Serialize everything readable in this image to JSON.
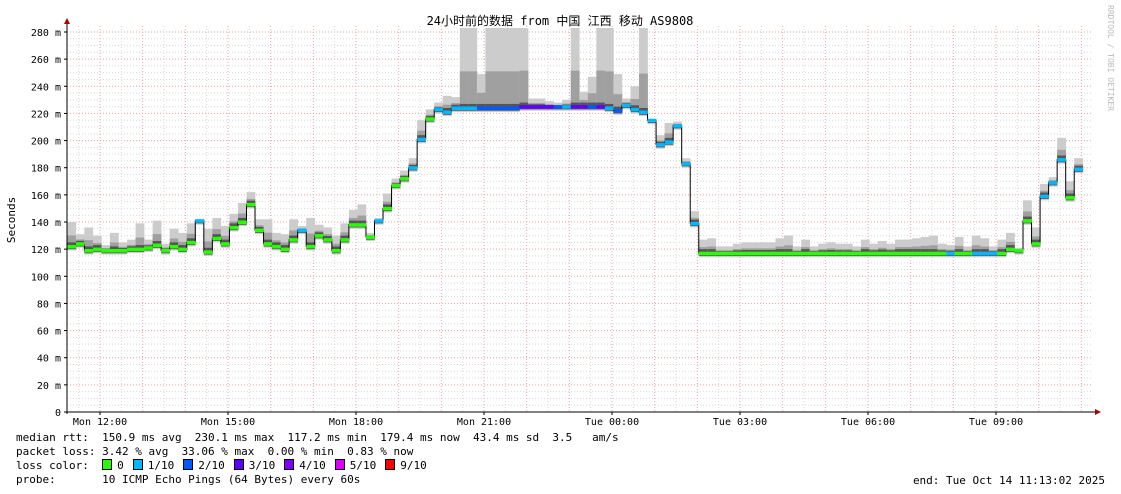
{
  "chart_data": {
    "type": "line",
    "title": "24小时前的数据 from 中国 江西 移动 AS9808",
    "ylabel": "Seconds",
    "watermark": "RRDTOOL / TOBI OETIKER",
    "ylim": [
      0,
      280
    ],
    "yticks": [
      {
        "v": 0,
        "label": "0"
      },
      {
        "v": 20,
        "label": "20 m"
      },
      {
        "v": 40,
        "label": "40 m"
      },
      {
        "v": 60,
        "label": "60 m"
      },
      {
        "v": 80,
        "label": "80 m"
      },
      {
        "v": 100,
        "label": "100 m"
      },
      {
        "v": 120,
        "label": "120 m"
      },
      {
        "v": 140,
        "label": "140 m"
      },
      {
        "v": 160,
        "label": "160 m"
      },
      {
        "v": 180,
        "label": "180 m"
      },
      {
        "v": 200,
        "label": "200 m"
      },
      {
        "v": 220,
        "label": "220 m"
      },
      {
        "v": 240,
        "label": "240 m"
      },
      {
        "v": 260,
        "label": "260 m"
      },
      {
        "v": 280,
        "label": "280 m"
      }
    ],
    "xticks": [
      "Mon 12:00",
      "Mon 15:00",
      "Mon 18:00",
      "Mon 21:00",
      "Tue 00:00",
      "Tue 03:00",
      "Tue 06:00",
      "Tue 09:00"
    ],
    "grid": true,
    "units": "ms",
    "times": [
      "Mon 11:14",
      "Mon 11:26",
      "Mon 11:38",
      "Mon 11:50",
      "Mon 12:02",
      "Mon 12:14",
      "Mon 12:26",
      "Mon 12:38",
      "Mon 12:50",
      "Mon 13:02",
      "Mon 13:14",
      "Mon 13:26",
      "Mon 13:38",
      "Mon 13:50",
      "Mon 14:02",
      "Mon 14:14",
      "Mon 14:26",
      "Mon 14:38",
      "Mon 14:50",
      "Mon 15:02",
      "Mon 15:14",
      "Mon 15:26",
      "Mon 15:38",
      "Mon 15:50",
      "Mon 16:02",
      "Mon 16:14",
      "Mon 16:26",
      "Mon 16:38",
      "Mon 16:50",
      "Mon 17:02",
      "Mon 17:14",
      "Mon 17:26",
      "Mon 17:38",
      "Mon 17:50",
      "Mon 18:02",
      "Mon 18:14",
      "Mon 18:26",
      "Mon 18:38",
      "Mon 18:50",
      "Mon 19:02",
      "Mon 19:14",
      "Mon 19:26",
      "Mon 19:38",
      "Mon 19:50",
      "Mon 20:02",
      "Mon 20:14",
      "Mon 20:26",
      "Mon 20:38",
      "Mon 20:50",
      "Mon 21:02",
      "Mon 21:14",
      "Mon 21:26",
      "Mon 21:38",
      "Mon 21:50",
      "Mon 22:02",
      "Mon 22:14",
      "Mon 22:26",
      "Mon 22:38",
      "Mon 22:50",
      "Mon 23:02",
      "Mon 23:14",
      "Mon 23:26",
      "Mon 23:38",
      "Mon 23:50",
      "Tue 00:02",
      "Tue 00:14",
      "Tue 00:26",
      "Tue 00:38",
      "Tue 00:50",
      "Tue 01:02",
      "Tue 01:14",
      "Tue 01:26",
      "Tue 01:38",
      "Tue 01:50",
      "Tue 02:02",
      "Tue 02:14",
      "Tue 02:26",
      "Tue 02:38",
      "Tue 02:50",
      "Tue 03:02",
      "Tue 03:14",
      "Tue 03:26",
      "Tue 03:38",
      "Tue 03:50",
      "Tue 04:02",
      "Tue 04:14",
      "Tue 04:26",
      "Tue 04:38",
      "Tue 04:50",
      "Tue 05:02",
      "Tue 05:14",
      "Tue 05:26",
      "Tue 05:38",
      "Tue 05:50",
      "Tue 06:02",
      "Tue 06:14",
      "Tue 06:26",
      "Tue 06:38",
      "Tue 06:50",
      "Tue 07:02",
      "Tue 07:14",
      "Tue 07:26",
      "Tue 07:38",
      "Tue 07:50",
      "Tue 08:02",
      "Tue 08:14",
      "Tue 08:26",
      "Tue 08:38",
      "Tue 08:50",
      "Tue 09:02",
      "Tue 09:14",
      "Tue 09:26",
      "Tue 09:38",
      "Tue 09:50",
      "Tue 10:02",
      "Tue 10:14",
      "Tue 10:26",
      "Tue 10:38",
      "Tue 10:50"
    ],
    "median": [
      122,
      124,
      119,
      120,
      119,
      119,
      119,
      120,
      120,
      121,
      123,
      119,
      122,
      120,
      125,
      141,
      118,
      128,
      124,
      136,
      140,
      153,
      134,
      124,
      122,
      120,
      127,
      134,
      122,
      130,
      127,
      119,
      127,
      138,
      138,
      129,
      141,
      150,
      167,
      172,
      180,
      201,
      216,
      223,
      221,
      224,
      224,
      224,
      224,
      224,
      224,
      224,
      224,
      225,
      225,
      225,
      225,
      225,
      225,
      225,
      225,
      225,
      225,
      224,
      222,
      226,
      223,
      221,
      215,
      197,
      199,
      211,
      183,
      139,
      117,
      117,
      117,
      117,
      117,
      117,
      117,
      117,
      117,
      117,
      117,
      117,
      117,
      117,
      117,
      117,
      117,
      117,
      117,
      117,
      117,
      117,
      117,
      117,
      117,
      117,
      117,
      117,
      117,
      117,
      117,
      117,
      117,
      117,
      117,
      117,
      120,
      119,
      141,
      124,
      159,
      169,
      186,
      158,
      179
    ],
    "max": [
      140,
      131,
      136,
      130,
      123,
      132,
      125,
      127,
      139,
      127,
      141,
      124,
      135,
      132,
      139,
      142,
      135,
      143,
      137,
      146,
      154,
      162,
      142,
      142,
      132,
      131,
      142,
      137,
      143,
      138,
      136,
      130,
      139,
      149,
      153,
      132,
      143,
      161,
      172,
      178,
      187,
      215,
      223,
      228,
      233,
      232,
      284,
      284,
      249,
      284,
      284,
      284,
      284,
      284,
      231,
      231,
      229,
      228,
      230,
      284,
      236,
      247,
      284,
      284,
      249,
      231,
      240,
      284,
      214,
      204,
      213,
      214,
      187,
      148,
      127,
      128,
      122,
      122,
      124,
      125,
      125,
      125,
      125,
      128,
      130,
      122,
      127,
      122,
      124,
      125,
      124,
      124,
      122,
      127,
      124,
      126,
      124,
      127,
      127,
      128,
      129,
      130,
      124,
      123,
      129,
      122,
      130,
      128,
      122,
      127,
      132,
      121,
      156,
      136,
      168,
      173,
      202,
      170,
      187
    ],
    "loss": [
      0,
      0,
      0,
      0,
      0,
      0,
      0,
      0,
      0,
      0,
      0,
      0,
      0,
      0,
      0,
      1,
      0,
      0,
      0,
      0,
      0,
      0,
      0,
      0,
      0,
      0,
      0,
      1,
      0,
      0,
      0,
      0,
      0,
      0,
      0,
      0,
      1,
      0,
      0,
      0,
      1,
      1,
      0,
      1,
      1,
      1,
      1,
      1,
      2,
      2,
      2,
      2,
      2,
      3,
      3,
      3,
      3,
      2,
      1,
      3,
      3,
      2,
      3,
      1,
      2,
      1,
      1,
      1,
      1,
      1,
      1,
      1,
      1,
      1,
      0,
      0,
      0,
      0,
      0,
      0,
      0,
      0,
      0,
      0,
      0,
      0,
      0,
      0,
      0,
      0,
      0,
      0,
      0,
      0,
      0,
      0,
      0,
      0,
      0,
      0,
      0,
      0,
      0,
      1,
      0,
      0,
      1,
      1,
      1,
      0,
      0,
      0,
      0,
      0,
      1,
      1,
      1,
      0,
      1
    ]
  },
  "legend": {
    "median_rtt": "median rtt:  150.9 ms avg  230.1 ms max  117.2 ms min  179.4 ms now  43.4 ms sd  3.5   am/s",
    "packet_loss": "packet loss: 3.42 % avg  33.06 % max  0.00 % min  0.83 % now",
    "loss_color_label": "loss color:  ",
    "loss_colors": [
      {
        "label": "0",
        "color": "#26ff00"
      },
      {
        "label": "1/10",
        "color": "#00b8ff"
      },
      {
        "label": "2/10",
        "color": "#0059ff"
      },
      {
        "label": "3/10",
        "color": "#5e00ff"
      },
      {
        "label": "4/10",
        "color": "#7e00ff"
      },
      {
        "label": "5/10",
        "color": "#dd00ff"
      },
      {
        "label": "9/10",
        "color": "#ff0000"
      }
    ],
    "probe": "probe:       10 ICMP Echo Pings (64 Bytes) every 60s",
    "end": "end: Tue Oct 14 11:13:02 2025"
  }
}
